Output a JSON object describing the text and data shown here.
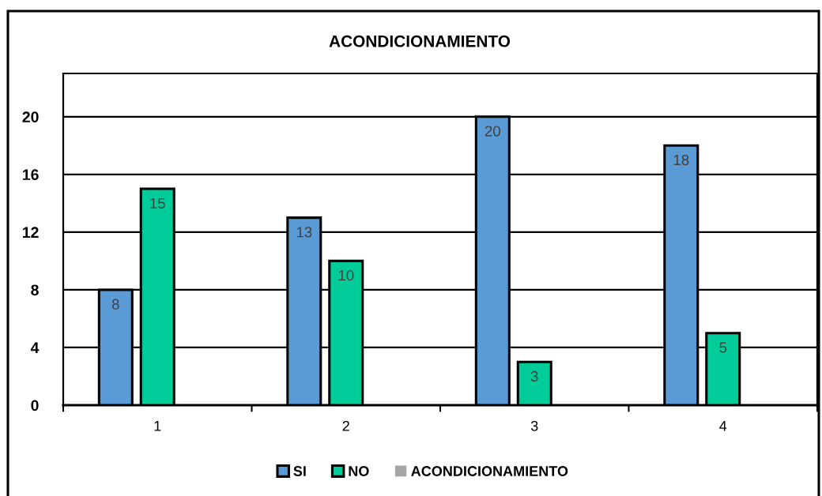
{
  "chart_data": {
    "type": "bar",
    "title": "ACONDICIONAMIENTO",
    "categories": [
      "1",
      "2",
      "3",
      "4"
    ],
    "series": [
      {
        "name": "SI",
        "color": "#5b9bd5",
        "values": [
          8,
          13,
          20,
          18
        ]
      },
      {
        "name": "NO",
        "color": "#00cc99",
        "values": [
          15,
          10,
          3,
          5
        ]
      },
      {
        "name": "ACONDICIONAMIENTO",
        "color": "#a5a5a5",
        "values": [
          null,
          null,
          null,
          null
        ]
      }
    ],
    "ylim": [
      0,
      23
    ],
    "yticks": [
      0,
      4,
      8,
      12,
      16,
      20
    ],
    "grid": "y",
    "legend": "bottom",
    "data_labels": true
  }
}
